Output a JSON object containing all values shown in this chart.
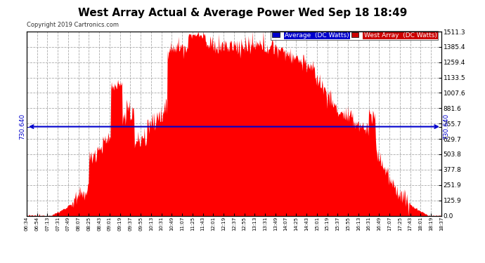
{
  "title": "West Array Actual & Average Power Wed Sep 18 18:49",
  "copyright": "Copyright 2019 Cartronics.com",
  "avg_label": "Average  (DC Watts)",
  "west_label": "West Array  (DC Watts)",
  "ymax": 1511.3,
  "ymin": 0.0,
  "avg_line_value": 730.64,
  "avg_line_label": "730.640",
  "right_yticks": [
    1511.3,
    1385.4,
    1259.4,
    1133.5,
    1007.6,
    881.6,
    755.7,
    629.7,
    503.8,
    377.8,
    251.9,
    125.9,
    0.0
  ],
  "bg_color": "#ffffff",
  "fill_color": "#ff0000",
  "avg_line_color": "#0000cc",
  "grid_color": "#aaaaaa",
  "title_color": "#000000",
  "legend_avg_bg": "#0000cc",
  "legend_west_bg": "#cc0000",
  "n_points": 720,
  "x_tick_labels": [
    "06:34",
    "06:54",
    "07:13",
    "07:31",
    "07:49",
    "08:07",
    "08:25",
    "08:43",
    "09:01",
    "09:19",
    "09:37",
    "09:55",
    "10:13",
    "10:31",
    "10:49",
    "11:07",
    "11:25",
    "11:43",
    "12:01",
    "12:19",
    "12:37",
    "12:55",
    "13:13",
    "13:31",
    "13:49",
    "14:07",
    "14:25",
    "14:43",
    "15:01",
    "15:19",
    "15:37",
    "15:55",
    "16:13",
    "16:31",
    "16:49",
    "17:07",
    "17:25",
    "17:43",
    "18:01",
    "18:19",
    "18:37"
  ]
}
